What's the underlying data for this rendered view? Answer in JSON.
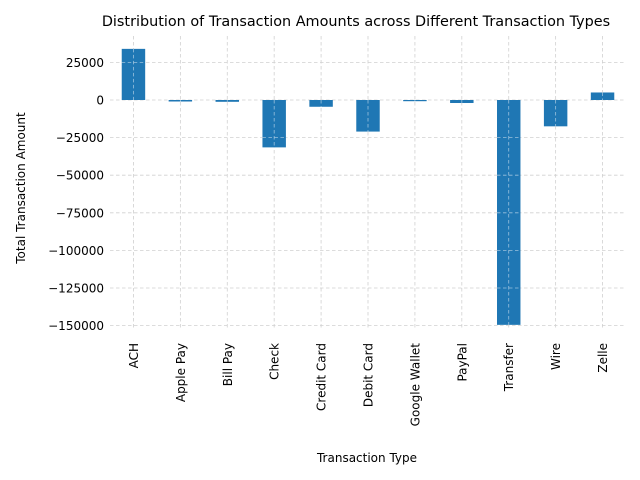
{
  "chart_data": {
    "type": "bar",
    "title": "Distribution of Transaction Amounts across Different Transaction Types",
    "xlabel": "Transaction Type",
    "ylabel": "Total Transaction Amount",
    "categories": [
      "ACH",
      "Apple Pay",
      "Bill Pay",
      "Check",
      "Credit Card",
      "Debit Card",
      "Google Wallet",
      "PayPal",
      "Transfer",
      "Wire",
      "Zelle"
    ],
    "values": [
      34000,
      -1000,
      -1200,
      -31500,
      -4500,
      -21000,
      -500,
      -2000,
      -149500,
      -17500,
      5000
    ],
    "yticks": [
      25000,
      0,
      -25000,
      -50000,
      -75000,
      -100000,
      -125000,
      -150000
    ],
    "ytick_labels": [
      "25000",
      "0",
      "−25000",
      "−50000",
      "−75000",
      "−100000",
      "−125000",
      "−150000"
    ],
    "ylim": [
      -155000,
      42000
    ],
    "grid": true,
    "bar_color": "#1f77b4",
    "grid_color": "#d0d0d0"
  }
}
